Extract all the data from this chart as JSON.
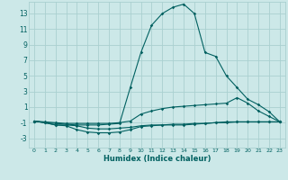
{
  "xlabel": "Humidex (Indice chaleur)",
  "bg_color": "#cce8e8",
  "grid_color": "#aad0d0",
  "line_color": "#006060",
  "xlim": [
    -0.5,
    23.5
  ],
  "ylim": [
    -4.2,
    14.5
  ],
  "yticks": [
    -3,
    -1,
    1,
    3,
    5,
    7,
    9,
    11,
    13
  ],
  "xticks": [
    0,
    1,
    2,
    3,
    4,
    5,
    6,
    7,
    8,
    9,
    10,
    11,
    12,
    13,
    14,
    15,
    16,
    17,
    18,
    19,
    20,
    21,
    22,
    23
  ],
  "x": [
    0,
    1,
    2,
    3,
    4,
    5,
    6,
    7,
    8,
    9,
    10,
    11,
    12,
    13,
    14,
    15,
    16,
    17,
    18,
    19,
    20,
    21,
    22,
    23
  ],
  "series": [
    [
      -0.8,
      -1.0,
      -1.3,
      -1.3,
      -1.4,
      -1.7,
      -1.8,
      -1.8,
      -1.7,
      -1.6,
      -1.4,
      -1.3,
      -1.3,
      -1.3,
      -1.3,
      -1.2,
      -1.1,
      -1.0,
      -0.9,
      -0.9,
      -0.9,
      -0.9,
      -0.9,
      -0.9
    ],
    [
      -0.8,
      -1.0,
      -1.3,
      -1.4,
      -1.9,
      -2.2,
      -2.3,
      -2.3,
      -2.2,
      -1.9,
      -1.5,
      -1.4,
      -1.3,
      -1.2,
      -1.2,
      -1.1,
      -1.1,
      -1.0,
      -1.0,
      -0.9,
      -0.9,
      -0.9,
      -0.9,
      -0.9
    ],
    [
      -0.8,
      -1.0,
      -1.1,
      -1.2,
      -1.3,
      -1.3,
      -1.3,
      -1.2,
      -1.1,
      3.5,
      8.0,
      11.5,
      13.0,
      13.8,
      14.2,
      13.0,
      8.0,
      7.5,
      5.0,
      3.5,
      2.0,
      1.3,
      0.4,
      -0.9
    ],
    [
      -0.8,
      -0.9,
      -1.0,
      -1.1,
      -1.1,
      -1.1,
      -1.1,
      -1.1,
      -1.0,
      -0.8,
      0.1,
      0.5,
      0.8,
      1.0,
      1.1,
      1.2,
      1.3,
      1.4,
      1.5,
      2.2,
      1.5,
      0.5,
      -0.2,
      -0.9
    ]
  ],
  "xlabel_fontsize": 6,
  "tick_fontsize_x": 4.5,
  "tick_fontsize_y": 5.5
}
